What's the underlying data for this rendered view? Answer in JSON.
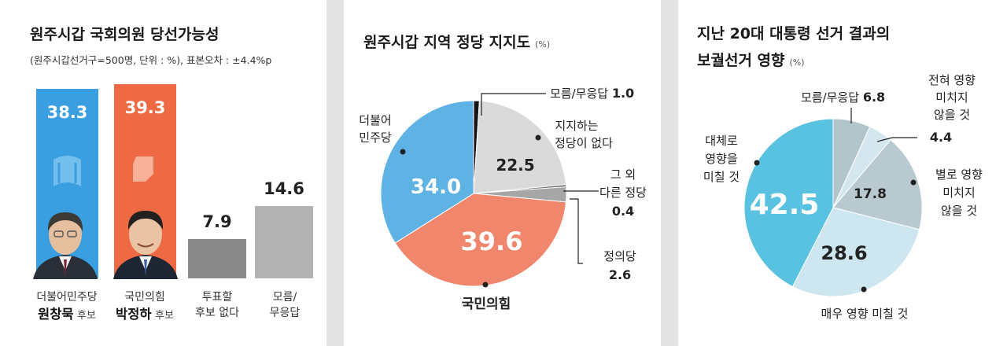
{
  "charts": [
    {
      "type": "bar",
      "title": "원주시갑 국회의원 당선가능성",
      "subtitle": "(원주시갑선거구=500명, 단위 : %), 표본오차 : ±4.4%p",
      "bars": [
        {
          "value": 38.3,
          "label": "38.3",
          "line1": "더불어민주당",
          "name": "원창묵",
          "suffix": "후보",
          "color": "#3a9fe0"
        },
        {
          "value": 39.3,
          "label": "39.3",
          "line1": "국민의힘",
          "name": "박정하",
          "suffix": "후보",
          "color": "#ee6a45"
        },
        {
          "value": 7.9,
          "label": "7.9",
          "line1": "투표할",
          "line2": "후보 없다",
          "color": "#898989"
        },
        {
          "value": 14.6,
          "label": "14.6",
          "line1": "모름/",
          "line2": "무응답",
          "color": "#b3b3b3"
        }
      ]
    },
    {
      "type": "pie",
      "title": "원주시갑 지역 정당 지지도",
      "unit": "(%)",
      "slices": [
        {
          "name": "모름/무응답",
          "value": 1.0,
          "label": "1.0",
          "color": "#141414"
        },
        {
          "name": "지지하는 정당이 없다",
          "value": 22.5,
          "label": "22.5",
          "color": "#dadada"
        },
        {
          "name": "그 외 다른 정당",
          "value": 0.4,
          "label": "0.4",
          "color": "#6e6e6e"
        },
        {
          "name": "정의당",
          "value": 2.6,
          "label": "2.6",
          "color": "#a6a6a6"
        },
        {
          "name": "국민의힘",
          "value": 39.6,
          "label": "39.6",
          "color": "#f0866b"
        },
        {
          "name": "더불어 민주당",
          "value": 34.0,
          "label": "34.0",
          "color": "#5eb2e4"
        }
      ],
      "texts": {
        "unknown": "모름/무응답",
        "none1": "지지하는",
        "none2": "정당이 없다",
        "other1": "그 외",
        "other2": "다른 정당",
        "justice": "정의당",
        "ppp": "국민의힘",
        "dem1": "더불어",
        "dem2": "민주당"
      }
    },
    {
      "type": "pie",
      "title1": "지난 20대 대통령 선거 결과의",
      "title2": "보궐선거 영향",
      "unit": "(%)",
      "slices": [
        {
          "name": "모름/무응답",
          "value": 6.8,
          "label": "6.8",
          "color": "#b2c5cb"
        },
        {
          "name": "전혀 영향 미치지 않을 것",
          "value": 4.4,
          "label": "4.4",
          "color": "#d4e7ee"
        },
        {
          "name": "별로 영향 미치지 않을 것",
          "value": 17.8,
          "label": "17.8",
          "color": "#b8c9cf"
        },
        {
          "name": "매우 영향 미칠 것",
          "value": 28.6,
          "label": "28.6",
          "color": "#cde6ef"
        },
        {
          "name": "대체로 영향을 미칠 것",
          "value": 42.5,
          "label": "42.5",
          "color": "#58c2e0"
        }
      ],
      "texts": {
        "unknown": "모름/무응답",
        "none1": "전혀 영향",
        "none2": "미치지",
        "none3": "않을 것",
        "little1": "별로 영향",
        "little2": "미치지",
        "little3": "않을 것",
        "very": "매우 영향 미칠 것",
        "mostly1": "대체로",
        "mostly2": "영향을",
        "mostly3": "미칠 것"
      }
    }
  ]
}
